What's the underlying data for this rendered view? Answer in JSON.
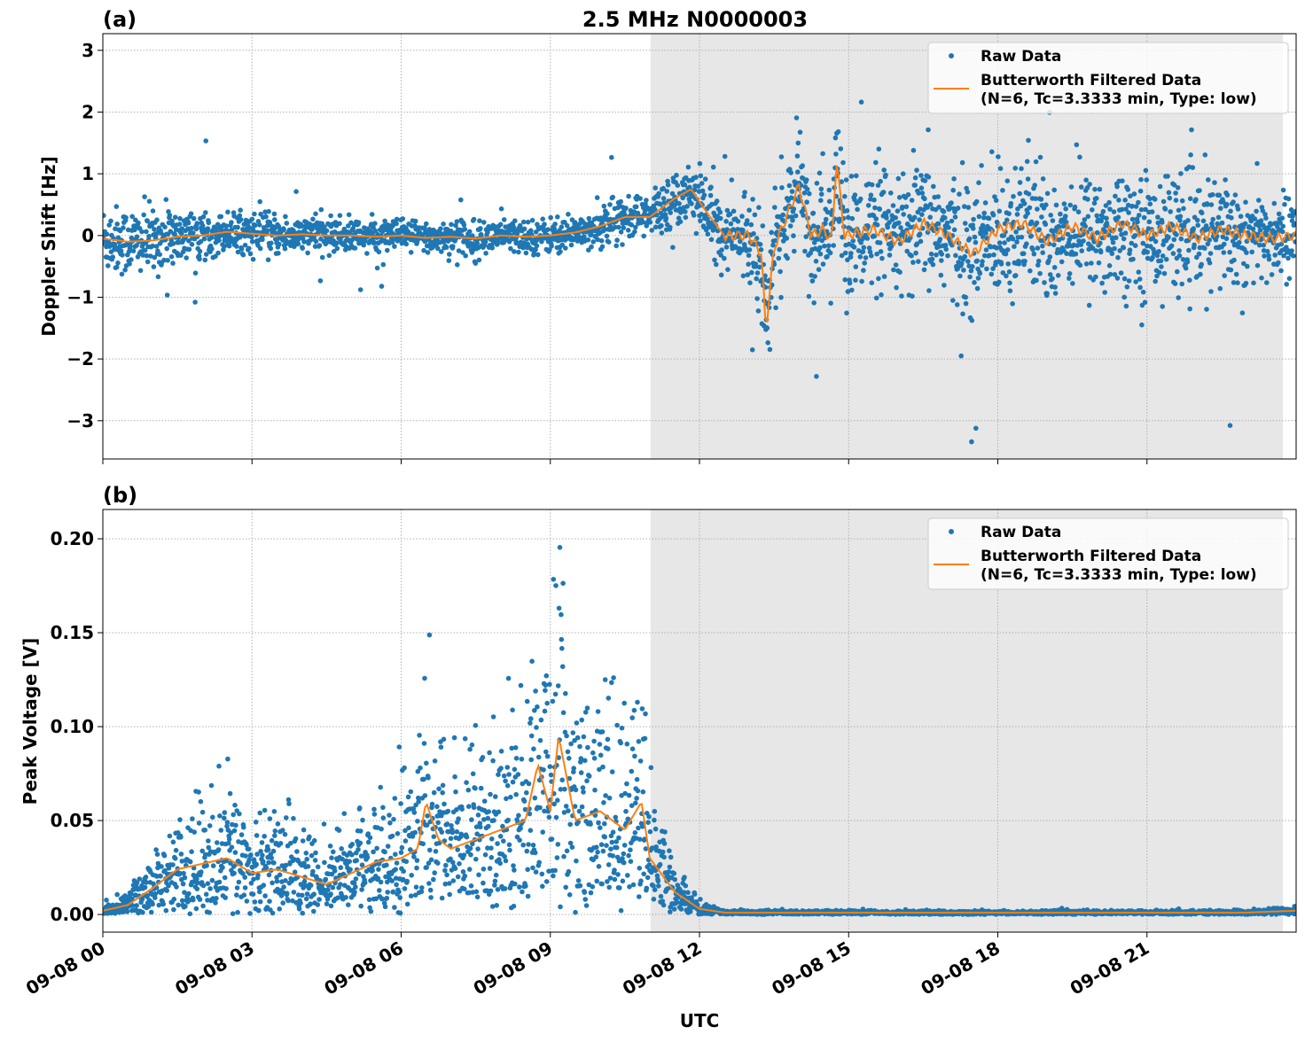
{
  "title": "2.5 MHz N0000003",
  "chart_data": [
    {
      "panel_label": "(a)",
      "type": "scatter+line",
      "ylabel": "Doppler Shift [Hz]",
      "xlabel": "",
      "xlim": [
        "09-08 00:00",
        "09-09 00:00"
      ],
      "ylim": [
        -3.62,
        3.27
      ],
      "yticks": [
        -3,
        -2,
        -1,
        0,
        1,
        2,
        3
      ],
      "ytick_labels": [
        "−3",
        "−2",
        "−1",
        "0",
        "1",
        "2",
        "3"
      ],
      "grid": true,
      "shaded_span": [
        "09-08 11:01",
        "09-08 23:44"
      ],
      "legend": {
        "placement": "top-right",
        "entries": [
          "Raw Data",
          "Butterworth Filtered Data\n(N=6, Tc=3.3333 min, Type: low)"
        ]
      },
      "series": [
        {
          "name": "Raw Data",
          "kind": "scatter",
          "color": "#1f77b4",
          "spread_by_hour": [
            0.6,
            0.55,
            0.35,
            0.35,
            0.3,
            0.3,
            0.3,
            0.3,
            0.3,
            0.3,
            0.4,
            0.45,
            0.6,
            0.9,
            1.1,
            1.1,
            1.1,
            1.2,
            1.2,
            1.1,
            1.1,
            1.0,
            1.0,
            0.8
          ]
        },
        {
          "name": "Butterworth Filtered Data (N=6, Tc=3.3333 min, Type: low)",
          "kind": "line",
          "color": "#ff7f0e",
          "points": [
            [
              "09-08 00:00",
              -0.05
            ],
            [
              "09-08 00:30",
              -0.1
            ],
            [
              "09-08 01:00",
              -0.08
            ],
            [
              "09-08 01:30",
              -0.02
            ],
            [
              "09-08 02:00",
              0.0
            ],
            [
              "09-08 02:30",
              0.06
            ],
            [
              "09-08 03:00",
              0.03
            ],
            [
              "09-08 03:30",
              0.0
            ],
            [
              "09-08 04:00",
              0.02
            ],
            [
              "09-08 04:30",
              0.0
            ],
            [
              "09-08 05:00",
              0.0
            ],
            [
              "09-08 05:30",
              -0.02
            ],
            [
              "09-08 06:00",
              0.0
            ],
            [
              "09-08 06:30",
              -0.04
            ],
            [
              "09-08 07:00",
              -0.02
            ],
            [
              "09-08 07:30",
              -0.05
            ],
            [
              "09-08 08:00",
              0.0
            ],
            [
              "09-08 08:30",
              -0.02
            ],
            [
              "09-08 09:00",
              0.0
            ],
            [
              "09-08 09:30",
              0.05
            ],
            [
              "09-08 10:00",
              0.15
            ],
            [
              "09-08 10:30",
              0.3
            ],
            [
              "09-08 11:00",
              0.3
            ],
            [
              "09-08 11:30",
              0.6
            ],
            [
              "09-08 11:50",
              0.75
            ],
            [
              "09-08 12:10",
              0.35
            ],
            [
              "09-08 12:30",
              0.0
            ],
            [
              "09-08 13:00",
              0.0
            ],
            [
              "09-08 13:15",
              -0.3
            ],
            [
              "09-08 13:20",
              -1.55
            ],
            [
              "09-08 13:30",
              -0.2
            ],
            [
              "09-08 13:45",
              0.3
            ],
            [
              "09-08 14:00",
              0.8
            ],
            [
              "09-08 14:15",
              0.0
            ],
            [
              "09-08 14:30",
              0.1
            ],
            [
              "09-08 14:40",
              -0.1
            ],
            [
              "09-08 14:45",
              1.25
            ],
            [
              "09-08 14:55",
              0.0
            ],
            [
              "09-08 15:30",
              0.1
            ],
            [
              "09-08 16:00",
              -0.1
            ],
            [
              "09-08 16:30",
              0.2
            ],
            [
              "09-08 17:00",
              0.0
            ],
            [
              "09-08 17:30",
              -0.3
            ],
            [
              "09-08 18:00",
              0.1
            ],
            [
              "09-08 18:30",
              0.2
            ],
            [
              "09-08 19:00",
              -0.1
            ],
            [
              "09-08 19:30",
              0.15
            ],
            [
              "09-08 20:00",
              -0.05
            ],
            [
              "09-08 20:30",
              0.2
            ],
            [
              "09-08 21:00",
              0.0
            ],
            [
              "09-08 21:30",
              0.15
            ],
            [
              "09-08 22:00",
              -0.05
            ],
            [
              "09-08 22:30",
              0.1
            ],
            [
              "09-08 23:00",
              0.0
            ],
            [
              "09-08 23:30",
              -0.05
            ],
            [
              "09-09 00:00",
              0.0
            ]
          ]
        }
      ]
    },
    {
      "panel_label": "(b)",
      "type": "scatter+line",
      "ylabel": "Peak Voltage [V]",
      "xlabel": "UTC",
      "xlim": [
        "09-08 00:00",
        "09-09 00:00"
      ],
      "ylim": [
        -0.0094,
        0.2156
      ],
      "yticks": [
        0.0,
        0.05,
        0.1,
        0.15,
        0.2
      ],
      "ytick_labels": [
        "0.00",
        "0.05",
        "0.10",
        "0.15",
        "0.20"
      ],
      "xticks": [
        "09-08 00",
        "09-08 03",
        "09-08 06",
        "09-08 09",
        "09-08 12",
        "09-08 15",
        "09-08 18",
        "09-08 21"
      ],
      "grid": true,
      "shaded_span": [
        "09-08 11:01",
        "09-08 23:44"
      ],
      "legend": {
        "placement": "top-right",
        "entries": [
          "Raw Data",
          "Butterworth Filtered Data\n(N=6, Tc=3.3333 min, Type: low)"
        ]
      },
      "series": [
        {
          "name": "Raw Data",
          "kind": "scatter",
          "color": "#1f77b4",
          "max_value": 0.205
        },
        {
          "name": "Butterworth Filtered Data (N=6, Tc=3.3333 min, Type: low)",
          "kind": "line",
          "color": "#ff7f0e",
          "points": [
            [
              "09-08 00:00",
              0.002
            ],
            [
              "09-08 00:30",
              0.005
            ],
            [
              "09-08 01:00",
              0.014
            ],
            [
              "09-08 01:30",
              0.024
            ],
            [
              "09-08 02:00",
              0.027
            ],
            [
              "09-08 02:30",
              0.03
            ],
            [
              "09-08 03:00",
              0.022
            ],
            [
              "09-08 03:30",
              0.024
            ],
            [
              "09-08 04:00",
              0.02
            ],
            [
              "09-08 04:30",
              0.016
            ],
            [
              "09-08 05:00",
              0.022
            ],
            [
              "09-08 05:30",
              0.028
            ],
            [
              "09-08 06:00",
              0.03
            ],
            [
              "09-08 06:20",
              0.035
            ],
            [
              "09-08 06:30",
              0.06
            ],
            [
              "09-08 06:45",
              0.04
            ],
            [
              "09-08 07:00",
              0.035
            ],
            [
              "09-08 07:30",
              0.04
            ],
            [
              "09-08 08:00",
              0.045
            ],
            [
              "09-08 08:30",
              0.05
            ],
            [
              "09-08 08:45",
              0.08
            ],
            [
              "09-08 09:00",
              0.055
            ],
            [
              "09-08 09:10",
              0.095
            ],
            [
              "09-08 09:30",
              0.05
            ],
            [
              "09-08 10:00",
              0.055
            ],
            [
              "09-08 10:30",
              0.045
            ],
            [
              "09-08 10:50",
              0.06
            ],
            [
              "09-08 11:00",
              0.03
            ],
            [
              "09-08 11:30",
              0.012
            ],
            [
              "09-08 12:00",
              0.003
            ],
            [
              "09-08 12:30",
              0.001
            ],
            [
              "09-08 18:00",
              0.001
            ],
            [
              "09-08 23:00",
              0.001
            ],
            [
              "09-08 23:30",
              0.0015
            ],
            [
              "09-09 00:00",
              0.002
            ]
          ]
        }
      ]
    }
  ]
}
